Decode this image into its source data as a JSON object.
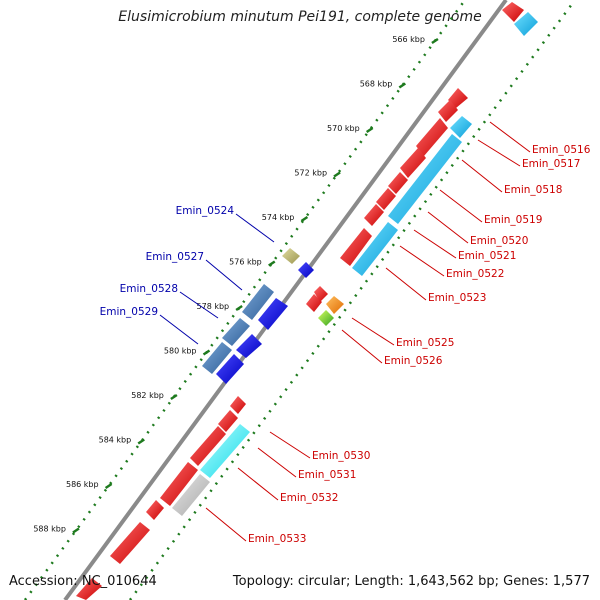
{
  "title": "Elusimicrobium minutum Pei191, complete genome",
  "footer": {
    "accession": "Accession: NC_010644",
    "summary": "Topology: circular; Length: 1,643,562 bp; Genes: 1,577"
  },
  "colors": {
    "backbone": "#8a8a8a",
    "tick_dots": "#1e7a1e",
    "forward_gene": "#e8141c",
    "forward_gene_highlight": "#18b8f0",
    "reverse_gene": "#1010e0",
    "reverse_gene_highlight": "#4a7fb8",
    "forward_label": "#cc0000",
    "reverse_label": "#0000aa"
  },
  "ticks": [
    {
      "label": "566 kbp",
      "kbp": 566
    },
    {
      "label": "568 kbp",
      "kbp": 568
    },
    {
      "label": "570 kbp",
      "kbp": 570
    },
    {
      "label": "572 kbp",
      "kbp": 572
    },
    {
      "label": "574 kbp",
      "kbp": 574
    },
    {
      "label": "576 kbp",
      "kbp": 576
    },
    {
      "label": "578 kbp",
      "kbp": 578
    },
    {
      "label": "580 kbp",
      "kbp": 580
    },
    {
      "label": "582 kbp",
      "kbp": 582
    },
    {
      "label": "584 kbp",
      "kbp": 584
    },
    {
      "label": "586 kbp",
      "kbp": 586
    },
    {
      "label": "588 kbp",
      "kbp": 588
    }
  ],
  "forward_labels": [
    "Emin_0516",
    "Emin_0517",
    "Emin_0518",
    "Emin_0519",
    "Emin_0520",
    "Emin_0521",
    "Emin_0522",
    "Emin_0523",
    "Emin_0525",
    "Emin_0526",
    "Emin_0530",
    "Emin_0531",
    "Emin_0532",
    "Emin_0533"
  ],
  "reverse_labels": [
    "Emin_0524",
    "Emin_0527",
    "Emin_0528",
    "Emin_0529"
  ]
}
